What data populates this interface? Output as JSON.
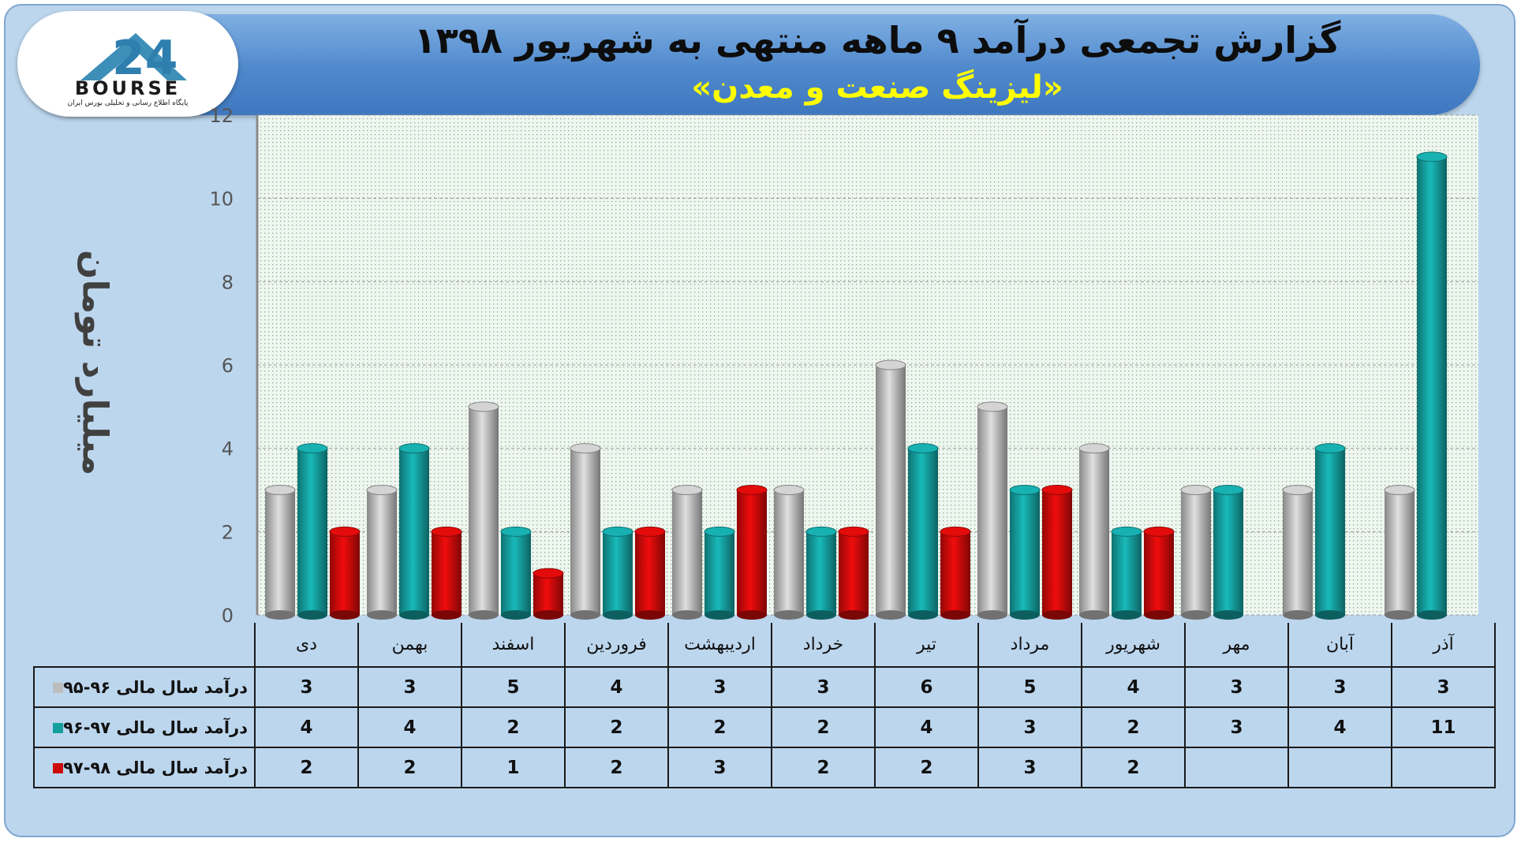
{
  "header": {
    "title": "گزارش تجمعی درآمد ۹ ماهه منتهی به شهریور ۱۳۹۸",
    "subtitle": "«لیزینگ صنعت و معدن»"
  },
  "logo": {
    "text": "BOURSE",
    "subtext": "پایگاه اطلاع رسانی و تحلیلی بورس ایران"
  },
  "chart_data": {
    "type": "bar",
    "ylabel": "میلیارد تومان",
    "ylim": [
      0,
      12
    ],
    "yticks": [
      0,
      2,
      4,
      6,
      8,
      10,
      12
    ],
    "grid": true,
    "categories": [
      "دی",
      "بهمن",
      "اسفند",
      "فروردین",
      "اردیبهشت",
      "خرداد",
      "تیر",
      "مرداد",
      "شهریور",
      "مهر",
      "آبان",
      "آذر"
    ],
    "series": [
      {
        "name": "درآمد سال مالی ۹۶-۹۵",
        "color": "#bdbdbd",
        "values": [
          3,
          3,
          5,
          4,
          3,
          3,
          6,
          5,
          4,
          3,
          3,
          3
        ]
      },
      {
        "name": "درآمد سال مالی ۹۷-۹۶",
        "color": "#159e9e",
        "values": [
          4,
          4,
          2,
          2,
          2,
          2,
          4,
          3,
          2,
          3,
          4,
          11
        ]
      },
      {
        "name": "درآمد سال مالی ۹۸-۹۷",
        "color": "#cc0a0a",
        "values": [
          2,
          2,
          1,
          2,
          3,
          2,
          2,
          3,
          2,
          null,
          null,
          null
        ]
      }
    ]
  }
}
